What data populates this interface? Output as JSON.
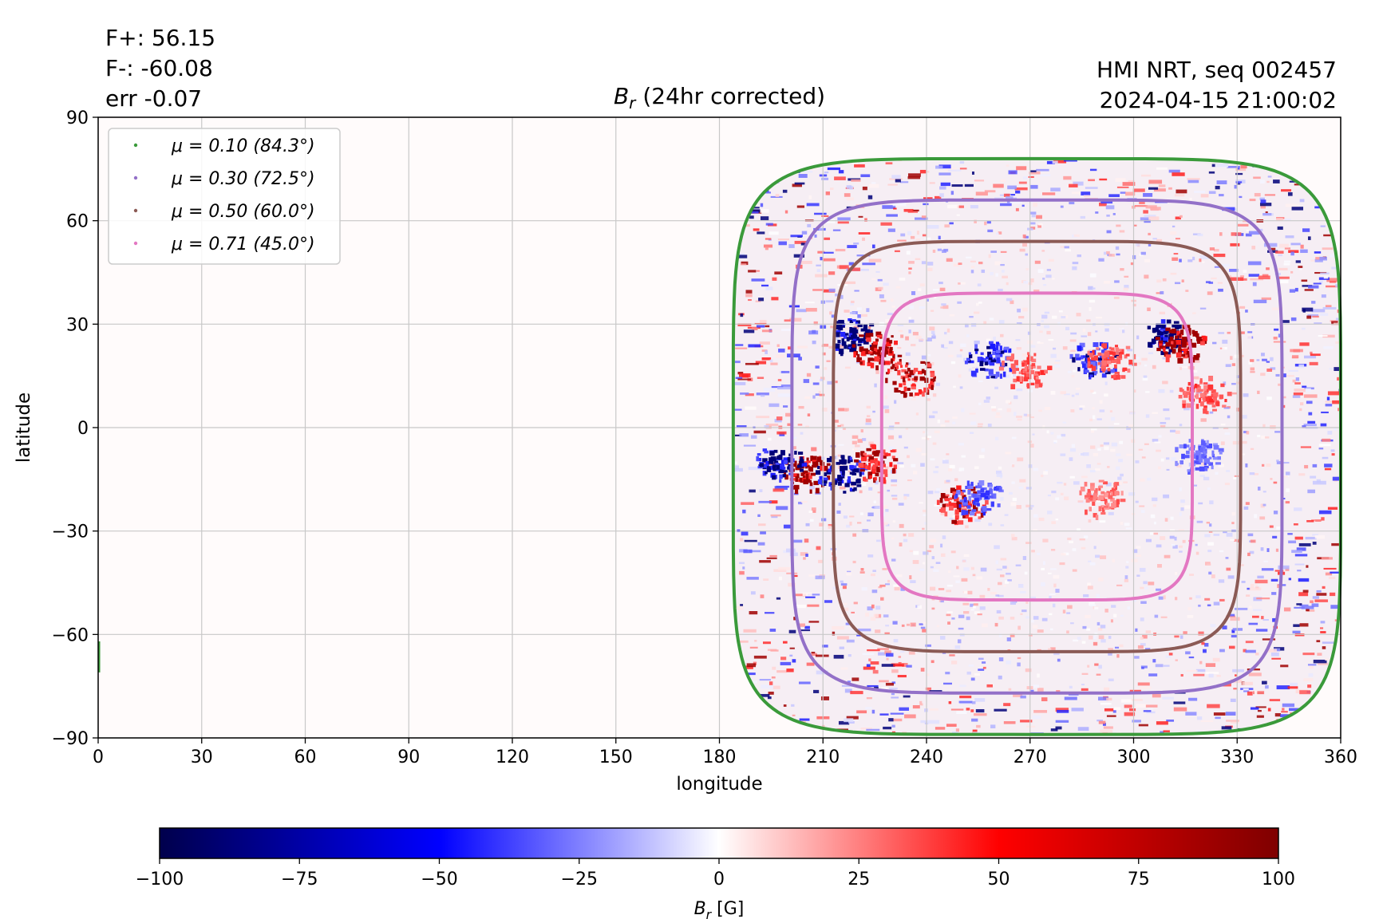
{
  "stats": {
    "f_plus": "F+: 56.15",
    "f_minus": "F-: -60.08",
    "err": "err -0.07"
  },
  "source": {
    "line1": "HMI NRT, seq 002457",
    "line2": "2024-04-15 21:00:02"
  },
  "chart_data": {
    "type": "heatmap",
    "title": "B_r (24hr corrected)",
    "title_symbol": "B",
    "title_sub": "r",
    "title_rest": " (24hr corrected)",
    "xlabel": "longitude",
    "ylabel": "latitude",
    "xlim": [
      0,
      360
    ],
    "ylim": [
      -90,
      90
    ],
    "xticks": [
      0,
      30,
      60,
      90,
      120,
      150,
      180,
      210,
      240,
      270,
      300,
      330,
      360
    ],
    "yticks": [
      -90,
      -60,
      -30,
      0,
      30,
      60,
      90
    ],
    "ytick_labels": [
      "−90",
      "−60",
      "−30",
      "0",
      "30",
      "60",
      "90"
    ],
    "grid": true,
    "legend_position": "upper-left",
    "disk_center_longitude": 272,
    "disk_center_latitude": -5,
    "series": [
      {
        "name": "μ = 0.10 (84.3°)",
        "mu": 0.1,
        "color": "#3a9a3a",
        "lon_halfwidth": 88,
        "lat_top": 78,
        "lat_bottom": -89
      },
      {
        "name": "μ = 0.30 (72.5°)",
        "mu": 0.3,
        "color": "#9370c8",
        "lon_halfwidth": 71,
        "lat_top": 66,
        "lat_bottom": -77
      },
      {
        "name": "μ = 0.50 (60.0°)",
        "mu": 0.5,
        "color": "#8b5a55",
        "lon_halfwidth": 59,
        "lat_top": 54,
        "lat_bottom": -65
      },
      {
        "name": "μ = 0.71 (45.0°)",
        "mu": 0.71,
        "color": "#e377c2",
        "lon_halfwidth": 45,
        "lat_top": 39,
        "lat_bottom": -50
      }
    ],
    "colorbar": {
      "label": "B_r [G]",
      "label_symbol": "B",
      "label_sub": "r",
      "label_rest": " [G]",
      "min": -100,
      "max": 100,
      "ticks": [
        -100,
        -75,
        -50,
        -25,
        0,
        25,
        50,
        75,
        100
      ],
      "tick_labels": [
        "−100",
        "−75",
        "−50",
        "−25",
        "0",
        "25",
        "50",
        "75",
        "100"
      ],
      "colormap": "seismic"
    },
    "active_regions": [
      {
        "lon": 218,
        "lat": 27,
        "polarity": "negative",
        "strength": 1.0
      },
      {
        "lon": 225,
        "lat": 23,
        "polarity": "positive",
        "strength": 1.0
      },
      {
        "lon": 235,
        "lat": 15,
        "polarity": "positive",
        "strength": 0.8
      },
      {
        "lon": 205,
        "lat": -13,
        "polarity": "positive",
        "strength": 1.0
      },
      {
        "lon": 197,
        "lat": -10,
        "polarity": "negative",
        "strength": 0.9
      },
      {
        "lon": 215,
        "lat": -13,
        "polarity": "negative",
        "strength": 0.9
      },
      {
        "lon": 225,
        "lat": -10,
        "polarity": "positive",
        "strength": 0.8
      },
      {
        "lon": 250,
        "lat": -22,
        "polarity": "positive",
        "strength": 0.8
      },
      {
        "lon": 255,
        "lat": -20,
        "polarity": "negative",
        "strength": 0.6
      },
      {
        "lon": 258,
        "lat": 20,
        "polarity": "negative",
        "strength": 0.7
      },
      {
        "lon": 268,
        "lat": 17,
        "polarity": "positive",
        "strength": 0.6
      },
      {
        "lon": 288,
        "lat": 20,
        "polarity": "negative",
        "strength": 0.7
      },
      {
        "lon": 293,
        "lat": 20,
        "polarity": "positive",
        "strength": 0.6
      },
      {
        "lon": 310,
        "lat": 27,
        "polarity": "negative",
        "strength": 1.0
      },
      {
        "lon": 313,
        "lat": 25,
        "polarity": "positive",
        "strength": 0.9
      },
      {
        "lon": 320,
        "lat": 10,
        "polarity": "positive",
        "strength": 0.6
      },
      {
        "lon": 318,
        "lat": -8,
        "polarity": "negative",
        "strength": 0.5
      },
      {
        "lon": 290,
        "lat": -20,
        "polarity": "positive",
        "strength": 0.5
      }
    ]
  }
}
